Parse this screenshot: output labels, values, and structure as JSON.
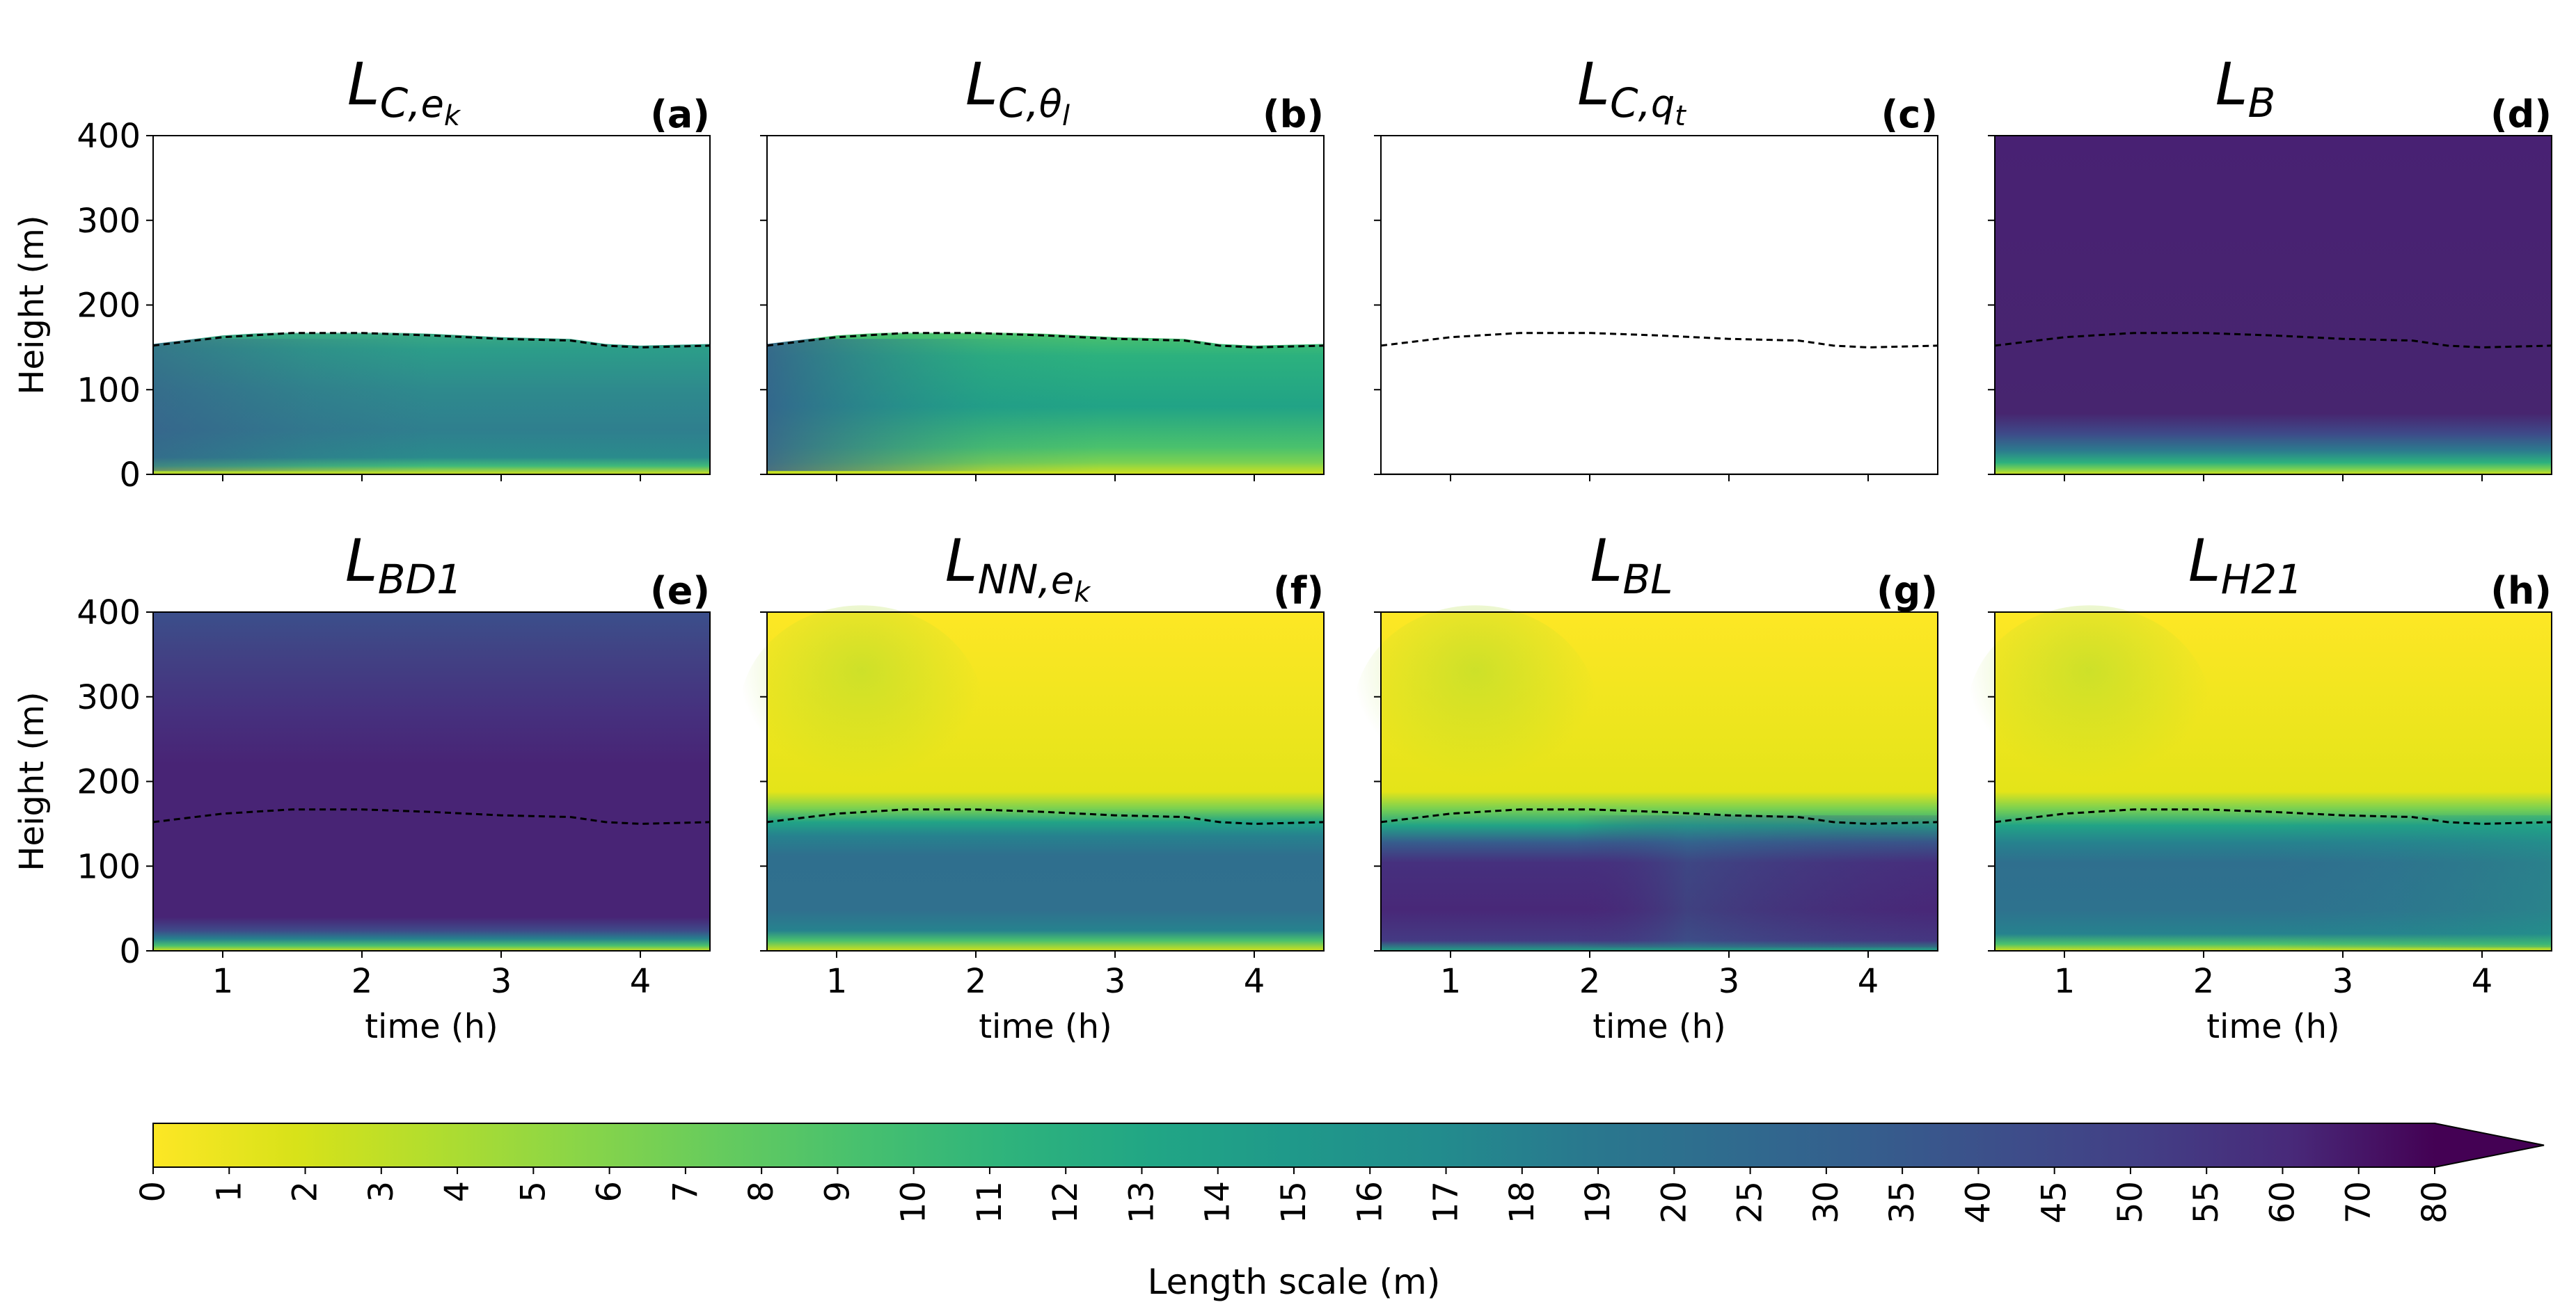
{
  "figure": {
    "ylabel": "Height (m)",
    "xlabel": "time (h)"
  },
  "chart_data": {
    "type": "heatmap",
    "xlabel": "time (h)",
    "ylabel": "Height (m)",
    "xlim": [
      0.5,
      4.5
    ],
    "ylim": [
      0,
      400
    ],
    "xticks": [
      1,
      2,
      3,
      4
    ],
    "yticks": [
      0,
      100,
      200,
      300,
      400
    ],
    "boundary_layer_height": {
      "style": "dashed",
      "color": "#000000",
      "t": [
        0.5,
        1.0,
        1.5,
        2.0,
        2.5,
        3.0,
        3.5,
        3.75,
        4.0,
        4.5
      ],
      "h": [
        152,
        162,
        167,
        167,
        164,
        160,
        158,
        152,
        150,
        152
      ]
    },
    "panels": [
      {
        "tag": "(a)",
        "symbol": "L",
        "sub": "C,",
        "subsub": "e",
        "subsubsub": "k",
        "key": "LC_ek"
      },
      {
        "tag": "(b)",
        "symbol": "L",
        "sub": "C,",
        "subsub": "θ",
        "subsubsub": "l",
        "key": "LC_thetal"
      },
      {
        "tag": "(c)",
        "symbol": "L",
        "sub": "C,",
        "subsub": "q",
        "subsubsub": "t",
        "key": "LC_qt"
      },
      {
        "tag": "(d)",
        "symbol": "L",
        "sub": "B",
        "subsub": "",
        "subsubsub": "",
        "key": "LB"
      },
      {
        "tag": "(e)",
        "symbol": "L",
        "sub": "BD1",
        "subsub": "",
        "subsubsub": "",
        "key": "LBD1"
      },
      {
        "tag": "(f)",
        "symbol": "L",
        "sub": "NN,",
        "subsub": "e",
        "subsubsub": "k",
        "key": "LNN_ek"
      },
      {
        "tag": "(g)",
        "symbol": "L",
        "sub": "BL",
        "subsub": "",
        "subsubsub": "",
        "key": "LBL"
      },
      {
        "tag": "(h)",
        "symbol": "L",
        "sub": "H21",
        "subsub": "",
        "subsubsub": "",
        "key": "LH21"
      }
    ],
    "colorbar": {
      "label": "Length scale (m)",
      "levels": [
        "0",
        "1",
        "2",
        "3",
        "4",
        "5",
        "6",
        "7",
        "8",
        "9",
        "10",
        "11",
        "12",
        "13",
        "14",
        "15",
        "16",
        "17",
        "18",
        "19",
        "20",
        "25",
        "30",
        "35",
        "40",
        "45",
        "50",
        "55",
        "60",
        "70",
        "80"
      ],
      "extend": "max",
      "colormap": "viridis_r",
      "colors": [
        "#fde725",
        "#d8e219",
        "#b0dd2f",
        "#89d548",
        "#65cb5e",
        "#46c06f",
        "#2eb37c",
        "#21a685",
        "#1f998a",
        "#228c8d",
        "#29798e",
        "#2f6c8e",
        "#355e8d",
        "#3d4e8a",
        "#433e85",
        "#482979",
        "#440154"
      ]
    }
  }
}
